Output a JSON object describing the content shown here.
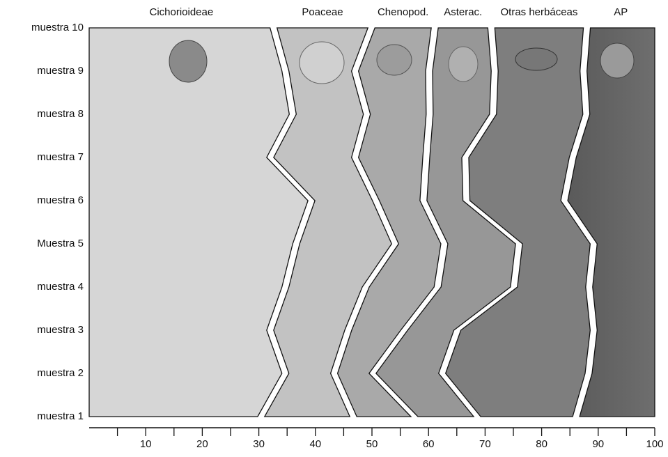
{
  "chart_data": {
    "type": "stacked-area-horizontal",
    "categories": [
      "muestra 1",
      "muestra 2",
      "muestra 3",
      "muestra 4",
      "Muestra 5",
      "muestra 6",
      "muestra 7",
      "muestra 8",
      "muestra 9",
      "muestra 10"
    ],
    "series": [
      {
        "name": "Cichorioideae",
        "color": "#d6d6d6",
        "values": [
          30.4,
          34.7,
          32,
          34.7,
          36.6,
          39.3,
          32,
          36,
          34.7,
          32.6
        ]
      },
      {
        "name": "Poaceae",
        "color": "#c2c2c2",
        "values": [
          16.3,
          8.6,
          13.8,
          14.2,
          17.5,
          11.4,
          15,
          13.1,
          12.3,
          17.3
        ]
      },
      {
        "name": "Chenopod.",
        "color": "#a9a9a9",
        "values": [
          10.8,
          6.8,
          9.9,
          12.7,
          8.7,
          8.4,
          12.6,
          11.1,
          13.1,
          11.2
        ]
      },
      {
        "name": "Asterac.",
        "color": "#979797",
        "values": [
          11.1,
          12.3,
          9.4,
          13.5,
          13.2,
          7.6,
          6.9,
          11.2,
          11.6,
          10
        ]
      },
      {
        "name": "Otras herbáceas",
        "color": "#7e7e7e",
        "values": [
          17.5,
          25.9,
          24.1,
          13.3,
          13.2,
          17.3,
          19,
          16.5,
          15.7,
          16.9
        ]
      },
      {
        "name": "AP",
        "color": "#5a5a5a",
        "values": [
          13.9,
          11.7,
          10.8,
          11.6,
          10.8,
          16,
          14.5,
          12.1,
          12.6,
          12
        ]
      }
    ],
    "xlim": [
      0,
      100
    ],
    "xticks": [
      10,
      20,
      30,
      40,
      50,
      60,
      70,
      80,
      90,
      100
    ],
    "xminorticks": [
      5,
      15,
      25,
      35,
      45,
      55,
      65,
      75,
      85,
      95
    ]
  }
}
